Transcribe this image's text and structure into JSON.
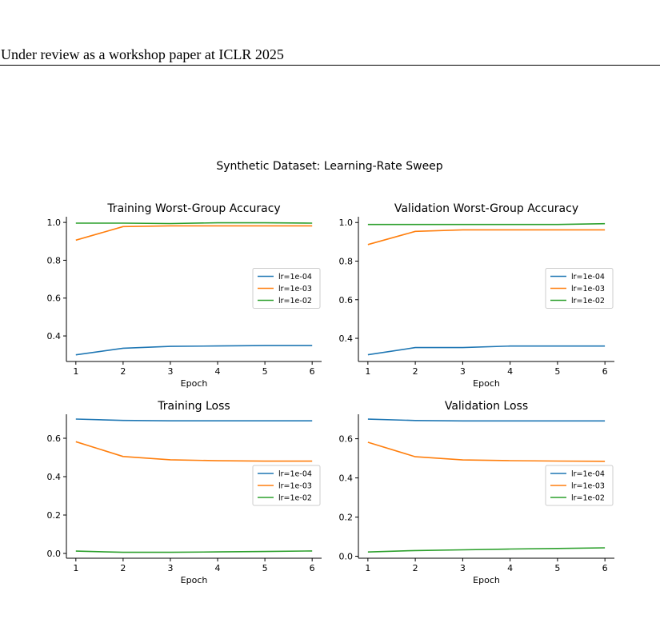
{
  "header": {
    "text": "Under review as a workshop paper at ICLR 2025"
  },
  "figure": {
    "suptitle": "Synthetic Dataset: Learning-Rate Sweep"
  },
  "colors": {
    "lr=1e-04": "#1f77b4",
    "lr=1e-03": "#ff7f0e",
    "lr=1e-02": "#2ca02c"
  },
  "chart_data": [
    {
      "type": "line",
      "title": "Training Worst-Group Accuracy",
      "xlabel": "Epoch",
      "ylabel": "",
      "x": [
        1,
        2,
        3,
        4,
        5,
        6
      ],
      "xlim": [
        0.8,
        6.2
      ],
      "ylim": [
        0.265,
        1.03
      ],
      "yticks": [
        0.4,
        0.6,
        0.8,
        1.0
      ],
      "ytick_labels": [
        "0.4",
        "0.6",
        "0.8",
        "1.0"
      ],
      "legend_position": "center-right",
      "series": [
        {
          "name": "lr=1e-04",
          "values": [
            0.3,
            0.335,
            0.345,
            0.347,
            0.349,
            0.349
          ]
        },
        {
          "name": "lr=1e-03",
          "values": [
            0.906,
            0.978,
            0.982,
            0.982,
            0.982,
            0.982
          ]
        },
        {
          "name": "lr=1e-02",
          "values": [
            0.996,
            0.996,
            0.994,
            0.998,
            0.998,
            0.996
          ]
        }
      ]
    },
    {
      "type": "line",
      "title": "Validation Worst-Group Accuracy",
      "xlabel": "Epoch",
      "ylabel": "",
      "x": [
        1,
        2,
        3,
        4,
        5,
        6
      ],
      "xlim": [
        0.8,
        6.2
      ],
      "ylim": [
        0.28,
        1.03
      ],
      "yticks": [
        0.4,
        0.6,
        0.8,
        1.0
      ],
      "ytick_labels": [
        "0.4",
        "0.6",
        "0.8",
        "1.0"
      ],
      "legend_position": "center-right",
      "series": [
        {
          "name": "lr=1e-04",
          "values": [
            0.315,
            0.352,
            0.352,
            0.36,
            0.36,
            0.36
          ]
        },
        {
          "name": "lr=1e-03",
          "values": [
            0.886,
            0.954,
            0.962,
            0.962,
            0.962,
            0.962
          ]
        },
        {
          "name": "lr=1e-02",
          "values": [
            0.99,
            0.99,
            0.99,
            0.99,
            0.99,
            0.994
          ]
        }
      ]
    },
    {
      "type": "line",
      "title": "Training Loss",
      "xlabel": "Epoch",
      "ylabel": "",
      "x": [
        1,
        2,
        3,
        4,
        5,
        6
      ],
      "xlim": [
        0.8,
        6.2
      ],
      "ylim": [
        -0.025,
        0.725
      ],
      "yticks": [
        0.0,
        0.2,
        0.4,
        0.6
      ],
      "ytick_labels": [
        "0.0",
        "0.2",
        "0.4",
        "0.6"
      ],
      "legend_position": "center-right",
      "series": [
        {
          "name": "lr=1e-04",
          "values": [
            0.7,
            0.693,
            0.691,
            0.691,
            0.691,
            0.691
          ]
        },
        {
          "name": "lr=1e-03",
          "values": [
            0.582,
            0.505,
            0.488,
            0.483,
            0.481,
            0.481
          ]
        },
        {
          "name": "lr=1e-02",
          "values": [
            0.012,
            0.006,
            0.006,
            0.008,
            0.01,
            0.013
          ]
        }
      ]
    },
    {
      "type": "line",
      "title": "Validation Loss",
      "xlabel": "Epoch",
      "ylabel": "",
      "x": [
        1,
        2,
        3,
        4,
        5,
        6
      ],
      "xlim": [
        0.8,
        6.2
      ],
      "ylim": [
        -0.01,
        0.725
      ],
      "yticks": [
        0.0,
        0.2,
        0.4,
        0.6
      ],
      "ytick_labels": [
        "0.0",
        "0.2",
        "0.4",
        "0.6"
      ],
      "legend_position": "center-right",
      "series": [
        {
          "name": "lr=1e-04",
          "values": [
            0.7,
            0.693,
            0.691,
            0.691,
            0.691,
            0.691
          ]
        },
        {
          "name": "lr=1e-03",
          "values": [
            0.582,
            0.508,
            0.492,
            0.488,
            0.486,
            0.485
          ]
        },
        {
          "name": "lr=1e-02",
          "values": [
            0.022,
            0.029,
            0.033,
            0.037,
            0.04,
            0.043
          ]
        }
      ]
    }
  ]
}
